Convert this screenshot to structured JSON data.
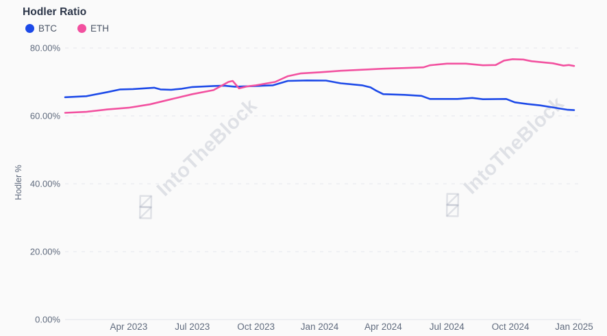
{
  "header": {
    "title": "Hodler Ratio"
  },
  "legend": [
    {
      "label": "BTC",
      "color": "#1c49e8"
    },
    {
      "label": "ETH",
      "color": "#f2509f"
    }
  ],
  "watermark": {
    "text": "IntoTheBlock"
  },
  "colors": {
    "background": "#fafafa",
    "btc_line": "#1c49e8",
    "eth_line": "#f2509f",
    "gridline": "#e4e6ec",
    "axis_text": "#5f6a7d",
    "title_text": "#2a3447"
  },
  "chart_data": {
    "type": "line",
    "title": "Hodler Ratio",
    "xlabel": "",
    "ylabel": "Hodler %",
    "ylim": [
      0,
      80
    ],
    "yticks": [
      0,
      20,
      40,
      60,
      80
    ],
    "ytick_labels": [
      "0.00%",
      "20.00%",
      "40.00%",
      "60.00%",
      "80.00%"
    ],
    "x_unit": "months since Jan 2023",
    "xlim": [
      0,
      24
    ],
    "xticks": [
      3,
      6,
      9,
      12,
      15,
      18,
      21,
      24
    ],
    "xtick_labels": [
      "Apr 2023",
      "Jul 2023",
      "Oct 2023",
      "Jan 2024",
      "Apr 2024",
      "Jul 2024",
      "Oct 2024",
      "Jan 2025"
    ],
    "grid": "horizontal-dashed",
    "legend_position": "top-left",
    "series": [
      {
        "name": "BTC",
        "color": "#1c49e8",
        "points": [
          [
            0,
            65.5
          ],
          [
            1,
            65.8
          ],
          [
            2,
            67.0
          ],
          [
            2.6,
            67.8
          ],
          [
            3.2,
            67.9
          ],
          [
            4.2,
            68.3
          ],
          [
            4.5,
            67.8
          ],
          [
            5,
            67.7
          ],
          [
            5.5,
            68.0
          ],
          [
            6,
            68.5
          ],
          [
            7,
            68.8
          ],
          [
            7.5,
            68.9
          ],
          [
            8,
            68.6
          ],
          [
            8.5,
            68.7
          ],
          [
            9,
            68.8
          ],
          [
            9.8,
            69.0
          ],
          [
            10.5,
            70.3
          ],
          [
            11.4,
            70.45
          ],
          [
            12.3,
            70.4
          ],
          [
            13,
            69.6
          ],
          [
            14,
            69.0
          ],
          [
            14.4,
            68.4
          ],
          [
            14.65,
            67.5
          ],
          [
            15,
            66.4
          ],
          [
            16,
            66.2
          ],
          [
            16.8,
            65.9
          ],
          [
            17.2,
            65.0
          ],
          [
            18.5,
            65.0
          ],
          [
            19.2,
            65.3
          ],
          [
            19.7,
            64.9
          ],
          [
            20.8,
            65.0
          ],
          [
            21.2,
            64.0
          ],
          [
            21.8,
            63.5
          ],
          [
            22.4,
            63.1
          ],
          [
            23.1,
            62.4
          ],
          [
            23.7,
            61.8
          ],
          [
            24,
            61.7
          ]
        ]
      },
      {
        "name": "ETH",
        "color": "#f2509f",
        "points": [
          [
            0,
            60.9
          ],
          [
            1,
            61.2
          ],
          [
            2,
            61.9
          ],
          [
            3,
            62.4
          ],
          [
            4,
            63.4
          ],
          [
            5,
            64.9
          ],
          [
            6,
            66.4
          ],
          [
            7,
            67.6
          ],
          [
            7.7,
            70.0
          ],
          [
            7.9,
            70.3
          ],
          [
            8.2,
            68.1
          ],
          [
            8.6,
            68.7
          ],
          [
            9,
            69.0
          ],
          [
            9.9,
            70.0
          ],
          [
            10.5,
            71.7
          ],
          [
            11.1,
            72.5
          ],
          [
            12,
            72.85
          ],
          [
            13,
            73.3
          ],
          [
            14,
            73.6
          ],
          [
            15,
            73.9
          ],
          [
            16,
            74.1
          ],
          [
            16.9,
            74.3
          ],
          [
            17.2,
            74.9
          ],
          [
            18,
            75.4
          ],
          [
            18.9,
            75.4
          ],
          [
            19.7,
            74.9
          ],
          [
            20.3,
            75.0
          ],
          [
            20.7,
            76.3
          ],
          [
            21.1,
            76.7
          ],
          [
            21.6,
            76.6
          ],
          [
            22,
            76.1
          ],
          [
            23,
            75.5
          ],
          [
            23.5,
            74.8
          ],
          [
            23.75,
            75.0
          ],
          [
            24,
            74.7
          ]
        ]
      }
    ]
  }
}
